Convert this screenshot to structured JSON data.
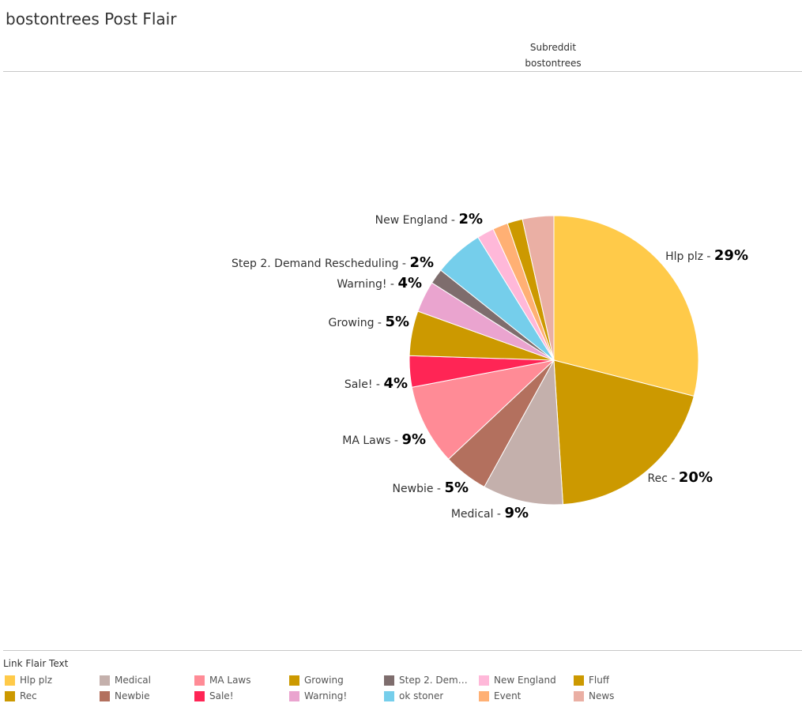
{
  "page": {
    "title": "bostontrees Post Flair",
    "column_header_label": "Subreddit",
    "column_header_value": "bostontrees"
  },
  "legend": {
    "title": "Link Flair Text",
    "items": [
      {
        "label": "Hlp plz",
        "color": "#FFCA49"
      },
      {
        "label": "Rec",
        "color": "#CC9900"
      },
      {
        "label": "Medical",
        "color": "#C4B0AC"
      },
      {
        "label": "Newbie",
        "color": "#B3705E"
      },
      {
        "label": "MA Laws",
        "color": "#FF8B96"
      },
      {
        "label": "Sale!",
        "color": "#FF2555"
      },
      {
        "label": "Growing",
        "color": "#CC9900"
      },
      {
        "label": "Warning!",
        "color": "#EAA4CF"
      },
      {
        "label": "Step 2. Demand..",
        "color": "#7E6D6D"
      },
      {
        "label": "ok stoner",
        "color": "#75CEEB"
      },
      {
        "label": "New England",
        "color": "#FFB8D9"
      },
      {
        "label": "Event",
        "color": "#FFB074"
      },
      {
        "label": "Fluff",
        "color": "#CC9900"
      },
      {
        "label": "News",
        "color": "#EAAFA4"
      }
    ]
  },
  "chart_data": {
    "type": "pie",
    "title": "bostontrees Post Flair",
    "start": "12 o'clock, clockwise",
    "slices": [
      {
        "label": "Hlp plz",
        "value": 29,
        "color": "#FFCA49",
        "label_text": "Hlp plz - ",
        "value_text": "29%"
      },
      {
        "label": "Rec",
        "value": 20,
        "color": "#CC9900",
        "label_text": "Rec - ",
        "value_text": "20%"
      },
      {
        "label": "Medical",
        "value": 9,
        "color": "#C4B0AC",
        "label_text": "Medical - ",
        "value_text": "9%"
      },
      {
        "label": "Newbie",
        "value": 5,
        "color": "#B3705E",
        "label_text": "Newbie - ",
        "value_text": "5%"
      },
      {
        "label": "MA Laws",
        "value": 9,
        "color": "#FF8B96",
        "label_text": "MA Laws - ",
        "value_text": "9%"
      },
      {
        "label": "Sale!",
        "value": 3.5,
        "color": "#FF2555",
        "label_text": "Sale! - ",
        "value_text": "4%"
      },
      {
        "label": "Growing",
        "value": 5,
        "color": "#CC9900",
        "label_text": "Growing  - ",
        "value_text": "5%"
      },
      {
        "label": "Warning!",
        "value": 3.5,
        "color": "#EAA4CF",
        "label_text": "Warning! - ",
        "value_text": "4%"
      },
      {
        "label": "Step 2. Demand Rescheduling",
        "value": 1.7,
        "color": "#7E6D6D",
        "label_text": "Step 2. Demand Rescheduling - ",
        "value_text": "2%"
      },
      {
        "label": "ok stoner",
        "value": 5.5,
        "color": "#75CEEB",
        "label_text": "",
        "value_text": ""
      },
      {
        "label": "New England",
        "value": 1.9,
        "color": "#FFB8D9",
        "label_text": "New England - ",
        "value_text": "2%"
      },
      {
        "label": "Event",
        "value": 1.7,
        "color": "#FFB074",
        "label_text": "",
        "value_text": ""
      },
      {
        "label": "Fluff",
        "value": 1.7,
        "color": "#CC9900",
        "label_text": "",
        "value_text": ""
      },
      {
        "label": "News",
        "value": 3.5,
        "color": "#EAAFA4",
        "label_text": "",
        "value_text": ""
      }
    ]
  }
}
